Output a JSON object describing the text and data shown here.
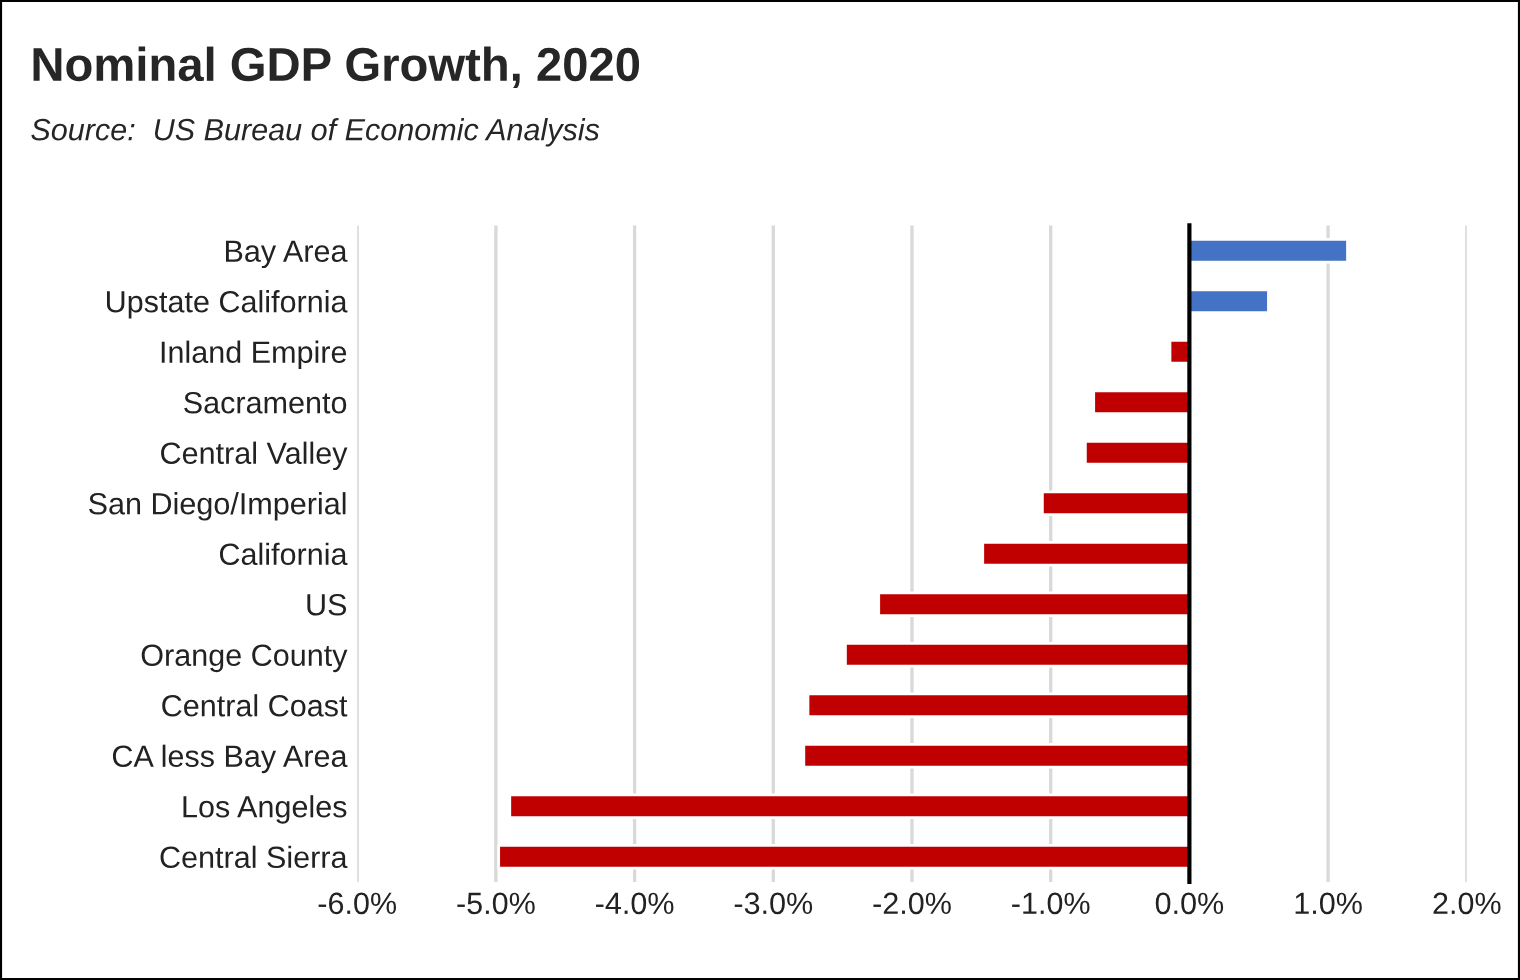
{
  "chart_data": {
    "type": "bar",
    "orientation": "horizontal",
    "title": "Nominal GDP Growth, 2020",
    "subtitle": "Source:  US Bureau of Economic Analysis",
    "categories": [
      "Bay Area",
      "Upstate California",
      "Inland Empire",
      "Sacramento",
      "Central Valley",
      "San Diego/Imperial",
      "California",
      "US",
      "Orange County",
      "Central Coast",
      "CA less Bay Area",
      "Los Angeles",
      "Central Sierra"
    ],
    "values": [
      1.14,
      0.57,
      -0.14,
      -0.69,
      -0.75,
      -1.06,
      -1.49,
      -2.24,
      -2.48,
      -2.75,
      -2.78,
      -4.9,
      -4.98
    ],
    "colors": [
      "#4472c4",
      "#4472c4",
      "#c00000",
      "#c00000",
      "#c00000",
      "#c00000",
      "#c00000",
      "#c00000",
      "#c00000",
      "#c00000",
      "#c00000",
      "#c00000",
      "#c00000"
    ],
    "xlim": [
      -6,
      2
    ],
    "xticks": [
      {
        "value": -6,
        "label": "-6.0%"
      },
      {
        "value": -5,
        "label": "-5.0%"
      },
      {
        "value": -4,
        "label": "-4.0%"
      },
      {
        "value": -3,
        "label": "-3.0%"
      },
      {
        "value": -2,
        "label": "-2.0%"
      },
      {
        "value": -1,
        "label": "-1.0%"
      },
      {
        "value": 0,
        "label": "0.0%"
      },
      {
        "value": 1,
        "label": "1.0%"
      },
      {
        "value": 2,
        "label": "2.0%"
      }
    ],
    "grid": "x"
  }
}
